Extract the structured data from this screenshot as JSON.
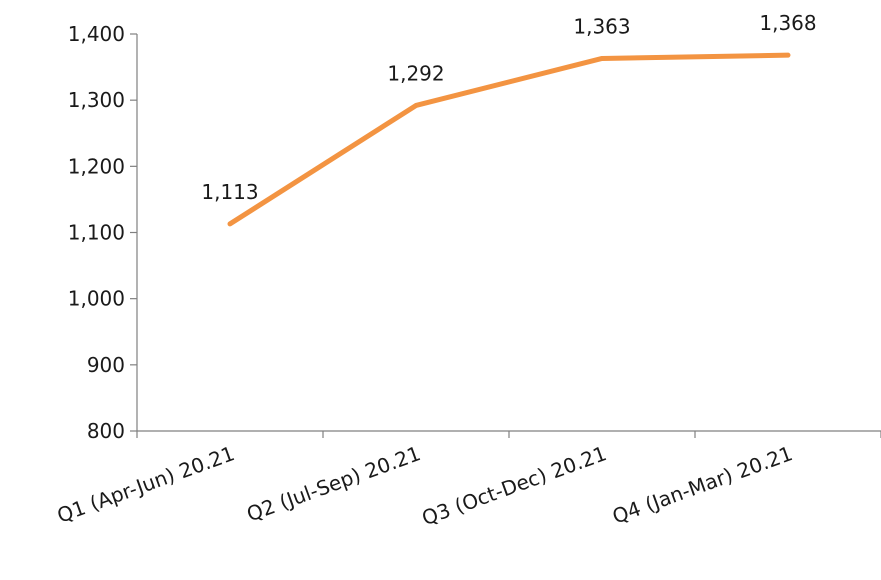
{
  "chart_data": {
    "type": "line",
    "categories": [
      "Q1 (Apr-Jun) 20.21",
      "Q2 (Jul-Sep) 20.21",
      "Q3 (Oct-Dec) 20.21",
      "Q4 (Jan-Mar) 20.21"
    ],
    "series": [
      {
        "values": [
          1113,
          1292,
          1363,
          1368
        ],
        "labels": [
          "1,113",
          "1,292",
          "1,363",
          "1,368"
        ],
        "color": "#F39442"
      }
    ],
    "ylim": [
      800,
      1400
    ],
    "yticks": [
      800,
      900,
      1000,
      1100,
      1200,
      1300,
      1400
    ],
    "ytick_labels": [
      "800",
      "900",
      "1,000",
      "1,100",
      "1,200",
      "1,300",
      "1,400"
    ],
    "grid": false,
    "legend": "none",
    "axis_color": "#808080"
  }
}
